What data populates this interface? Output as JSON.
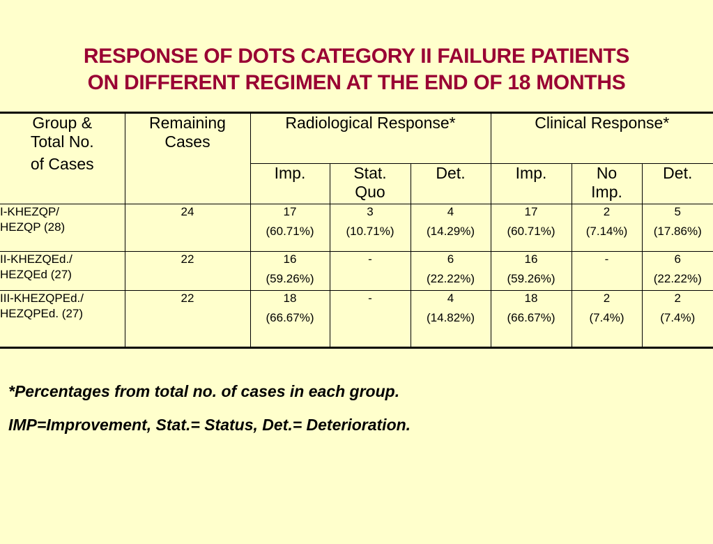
{
  "title": {
    "line1": "RESPONSE OF DOTS CATEGORY II FAILURE PATIENTS",
    "line2": "ON DIFFERENT REGIMEN AT THE END OF 18 MONTHS"
  },
  "colors": {
    "title": "#990033",
    "background": "#ffffcc"
  },
  "table": {
    "header": {
      "group_line1": "Group &",
      "group_line2": "Total No.",
      "group_line3": "of Cases",
      "remaining_line1": "Remaining",
      "remaining_line2": "Cases",
      "radiological": "Radiological Response*",
      "clinical": "Clinical Response*",
      "rad_imp": "Imp.",
      "rad_stat_line1": "Stat.",
      "rad_stat_line2": "Quo",
      "rad_det": "Det.",
      "cli_imp": "Imp.",
      "cli_noimp_line1": "No",
      "cli_noimp_line2": "Imp.",
      "cli_det": "Det."
    },
    "rows": [
      {
        "group_line1": "I-KHEZQP/",
        "group_line2": "HEZQP (28)",
        "remaining": "24",
        "rad_imp": "17",
        "rad_imp_pct": "(60.71%)",
        "rad_stat": "3",
        "rad_stat_pct": "(10.71%)",
        "rad_det": "4",
        "rad_det_pct": "(14.29%)",
        "cli_imp": "17",
        "cli_imp_pct": "(60.71%)",
        "cli_noimp": "2",
        "cli_noimp_pct": "(7.14%)",
        "cli_det": "5",
        "cli_det_pct": "(17.86%)"
      },
      {
        "group_line1": "II-KHEZQEd./",
        "group_line2": "HEZQEd (27)",
        "remaining": "22",
        "rad_imp": "16",
        "rad_imp_pct": "(59.26%)",
        "rad_stat": "-",
        "rad_stat_pct": "",
        "rad_det": "6",
        "rad_det_pct": "(22.22%)",
        "cli_imp": "16",
        "cli_imp_pct": "(59.26%)",
        "cli_noimp": "-",
        "cli_noimp_pct": "",
        "cli_det": "6",
        "cli_det_pct": "(22.22%)"
      },
      {
        "group_line1": "III-KHEZQPEd./",
        "group_line2": "HEZQPEd. (27)",
        "remaining": "22",
        "rad_imp": "18",
        "rad_imp_pct": "(66.67%)",
        "rad_stat": "-",
        "rad_stat_pct": "",
        "rad_det": "4",
        "rad_det_pct": "(14.82%)",
        "cli_imp": "18",
        "cli_imp_pct": "(66.67%)",
        "cli_noimp": "2",
        "cli_noimp_pct": "(7.4%)",
        "cli_det": "2",
        "cli_det_pct": "(7.4%)"
      }
    ]
  },
  "notes": {
    "footnote": "*Percentages from total no. of cases in each group.",
    "legend": "IMP=Improvement, Stat.= Status, Det.= Deterioration."
  }
}
